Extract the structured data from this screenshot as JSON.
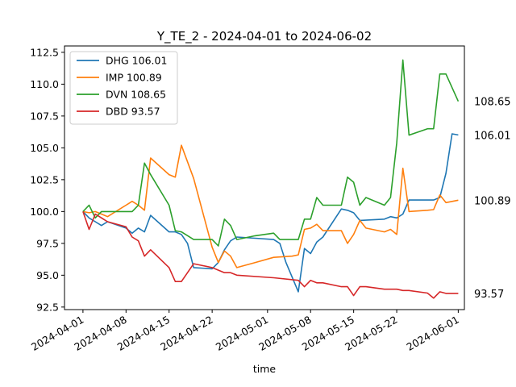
{
  "chart_data": {
    "type": "line",
    "title": "Y_TE_2 - 2024-04-01 to 2024-06-02",
    "xlabel": "time",
    "ylabel": "",
    "xlim": [
      "2024-03-29",
      "2024-06-02"
    ],
    "ylim": [
      92.3,
      113.0
    ],
    "x_ticks": [
      "2024-04-01",
      "2024-04-08",
      "2024-04-15",
      "2024-04-22",
      "2024-05-01",
      "2024-05-08",
      "2024-05-15",
      "2024-05-22",
      "2024-06-01"
    ],
    "y_ticks": [
      92.5,
      95.0,
      97.5,
      100.0,
      102.5,
      105.0,
      107.5,
      110.0,
      112.5
    ],
    "grid": false,
    "legend_position": "top-left",
    "series": [
      {
        "name": "DHG 106.01",
        "color": "#1f77b4",
        "end_label": "106.01",
        "points": [
          [
            "2024-04-01",
            100.0
          ],
          [
            "2024-04-02",
            99.5
          ],
          [
            "2024-04-03",
            99.2
          ],
          [
            "2024-04-04",
            98.9
          ],
          [
            "2024-04-05",
            99.2
          ],
          [
            "2024-04-08",
            98.7
          ],
          [
            "2024-04-09",
            98.3
          ],
          [
            "2024-04-10",
            98.7
          ],
          [
            "2024-04-11",
            98.4
          ],
          [
            "2024-04-12",
            99.7
          ],
          [
            "2024-04-15",
            98.4
          ],
          [
            "2024-04-16",
            98.4
          ],
          [
            "2024-04-17",
            98.2
          ],
          [
            "2024-04-18",
            97.5
          ],
          [
            "2024-04-19",
            95.6
          ],
          [
            "2024-04-22",
            95.5
          ],
          [
            "2024-04-23",
            96.0
          ],
          [
            "2024-04-24",
            97.0
          ],
          [
            "2024-04-25",
            97.7
          ],
          [
            "2024-04-26",
            98.0
          ],
          [
            "2024-04-29",
            97.9
          ],
          [
            "2024-05-02",
            97.8
          ],
          [
            "2024-05-03",
            97.5
          ],
          [
            "2024-05-04",
            96.0
          ],
          [
            "2024-05-06",
            93.7
          ],
          [
            "2024-05-07",
            97.1
          ],
          [
            "2024-05-08",
            96.7
          ],
          [
            "2024-05-09",
            97.6
          ],
          [
            "2024-05-10",
            98.0
          ],
          [
            "2024-05-13",
            100.2
          ],
          [
            "2024-05-14",
            100.1
          ],
          [
            "2024-05-15",
            99.9
          ],
          [
            "2024-05-16",
            99.3
          ],
          [
            "2024-05-20",
            99.4
          ],
          [
            "2024-05-21",
            99.6
          ],
          [
            "2024-05-22",
            99.5
          ],
          [
            "2024-05-23",
            99.8
          ],
          [
            "2024-05-24",
            100.9
          ],
          [
            "2024-05-27",
            100.9
          ],
          [
            "2024-05-28",
            100.9
          ],
          [
            "2024-05-29",
            101.1
          ],
          [
            "2024-05-30",
            103.0
          ],
          [
            "2024-05-31",
            106.1
          ],
          [
            "2024-06-01",
            106.01
          ]
        ]
      },
      {
        "name": "IMP 100.89",
        "color": "#ff7f0e",
        "end_label": "100.89",
        "points": [
          [
            "2024-04-01",
            100.0
          ],
          [
            "2024-04-02",
            99.9
          ],
          [
            "2024-04-03",
            100.0
          ],
          [
            "2024-04-04",
            99.8
          ],
          [
            "2024-04-05",
            99.6
          ],
          [
            "2024-04-08",
            100.5
          ],
          [
            "2024-04-09",
            100.8
          ],
          [
            "2024-04-10",
            100.5
          ],
          [
            "2024-04-11",
            100.1
          ],
          [
            "2024-04-12",
            104.2
          ],
          [
            "2024-04-15",
            102.9
          ],
          [
            "2024-04-16",
            102.7
          ],
          [
            "2024-04-17",
            105.2
          ],
          [
            "2024-04-19",
            102.6
          ],
          [
            "2024-04-22",
            97.2
          ],
          [
            "2024-04-23",
            96.0
          ],
          [
            "2024-04-24",
            96.9
          ],
          [
            "2024-04-25",
            96.5
          ],
          [
            "2024-04-26",
            95.6
          ],
          [
            "2024-04-29",
            96.0
          ],
          [
            "2024-05-02",
            96.4
          ],
          [
            "2024-05-05",
            96.5
          ],
          [
            "2024-05-06",
            96.6
          ],
          [
            "2024-05-07",
            98.6
          ],
          [
            "2024-05-08",
            98.7
          ],
          [
            "2024-05-09",
            99.0
          ],
          [
            "2024-05-10",
            98.5
          ],
          [
            "2024-05-13",
            98.5
          ],
          [
            "2024-05-14",
            97.5
          ],
          [
            "2024-05-15",
            98.2
          ],
          [
            "2024-05-16",
            99.3
          ],
          [
            "2024-05-17",
            98.7
          ],
          [
            "2024-05-20",
            98.4
          ],
          [
            "2024-05-21",
            98.6
          ],
          [
            "2024-05-22",
            98.2
          ],
          [
            "2024-05-23",
            103.4
          ],
          [
            "2024-05-24",
            100.0
          ],
          [
            "2024-05-27",
            100.1
          ],
          [
            "2024-05-28",
            100.15
          ],
          [
            "2024-05-29",
            101.3
          ],
          [
            "2024-05-30",
            100.7
          ],
          [
            "2024-06-01",
            100.89
          ]
        ]
      },
      {
        "name": "DVN 108.65",
        "color": "#2ca02c",
        "end_label": "108.65",
        "points": [
          [
            "2024-04-01",
            100.0
          ],
          [
            "2024-04-02",
            100.5
          ],
          [
            "2024-04-03",
            99.5
          ],
          [
            "2024-04-04",
            100.0
          ],
          [
            "2024-04-05",
            100.0
          ],
          [
            "2024-04-08",
            100.0
          ],
          [
            "2024-04-09",
            100.0
          ],
          [
            "2024-04-10",
            100.5
          ],
          [
            "2024-04-11",
            103.8
          ],
          [
            "2024-04-12",
            102.9
          ],
          [
            "2024-04-15",
            100.5
          ],
          [
            "2024-04-16",
            98.5
          ],
          [
            "2024-04-17",
            98.4
          ],
          [
            "2024-04-19",
            97.8
          ],
          [
            "2024-04-22",
            97.8
          ],
          [
            "2024-04-23",
            97.3
          ],
          [
            "2024-04-24",
            99.4
          ],
          [
            "2024-04-25",
            98.9
          ],
          [
            "2024-04-26",
            97.8
          ],
          [
            "2024-04-29",
            98.1
          ],
          [
            "2024-05-02",
            98.3
          ],
          [
            "2024-05-03",
            97.8
          ],
          [
            "2024-05-06",
            97.8
          ],
          [
            "2024-05-07",
            99.4
          ],
          [
            "2024-05-08",
            99.4
          ],
          [
            "2024-05-09",
            101.1
          ],
          [
            "2024-05-10",
            100.5
          ],
          [
            "2024-05-13",
            100.5
          ],
          [
            "2024-05-14",
            102.7
          ],
          [
            "2024-05-15",
            102.3
          ],
          [
            "2024-05-16",
            100.5
          ],
          [
            "2024-05-17",
            101.1
          ],
          [
            "2024-05-20",
            100.5
          ],
          [
            "2024-05-21",
            101.1
          ],
          [
            "2024-05-22",
            105.4
          ],
          [
            "2024-05-23",
            111.9
          ],
          [
            "2024-05-24",
            106.0
          ],
          [
            "2024-05-27",
            106.5
          ],
          [
            "2024-05-28",
            106.5
          ],
          [
            "2024-05-29",
            110.8
          ],
          [
            "2024-05-30",
            110.8
          ],
          [
            "2024-06-01",
            108.65
          ]
        ]
      },
      {
        "name": "DBD 93.57",
        "color": "#d62728",
        "end_label": "93.57",
        "points": [
          [
            "2024-04-01",
            100.0
          ],
          [
            "2024-04-02",
            98.6
          ],
          [
            "2024-04-03",
            99.8
          ],
          [
            "2024-04-05",
            99.2
          ],
          [
            "2024-04-08",
            98.8
          ],
          [
            "2024-04-09",
            98.0
          ],
          [
            "2024-04-10",
            97.7
          ],
          [
            "2024-04-11",
            96.5
          ],
          [
            "2024-04-12",
            97.0
          ],
          [
            "2024-04-15",
            95.6
          ],
          [
            "2024-04-16",
            94.5
          ],
          [
            "2024-04-17",
            94.5
          ],
          [
            "2024-04-19",
            95.9
          ],
          [
            "2024-04-22",
            95.6
          ],
          [
            "2024-04-24",
            95.2
          ],
          [
            "2024-04-25",
            95.2
          ],
          [
            "2024-04-26",
            95.0
          ],
          [
            "2024-05-02",
            94.8
          ],
          [
            "2024-05-06",
            94.6
          ],
          [
            "2024-05-07",
            94.1
          ],
          [
            "2024-05-08",
            94.6
          ],
          [
            "2024-05-09",
            94.4
          ],
          [
            "2024-05-10",
            94.4
          ],
          [
            "2024-05-13",
            94.1
          ],
          [
            "2024-05-14",
            94.1
          ],
          [
            "2024-05-15",
            93.4
          ],
          [
            "2024-05-16",
            94.1
          ],
          [
            "2024-05-17",
            94.1
          ],
          [
            "2024-05-20",
            93.9
          ],
          [
            "2024-05-22",
            93.9
          ],
          [
            "2024-05-23",
            93.8
          ],
          [
            "2024-05-24",
            93.8
          ],
          [
            "2024-05-27",
            93.6
          ],
          [
            "2024-05-28",
            93.2
          ],
          [
            "2024-05-29",
            93.7
          ],
          [
            "2024-05-30",
            93.57
          ],
          [
            "2024-06-01",
            93.57
          ]
        ]
      }
    ]
  }
}
